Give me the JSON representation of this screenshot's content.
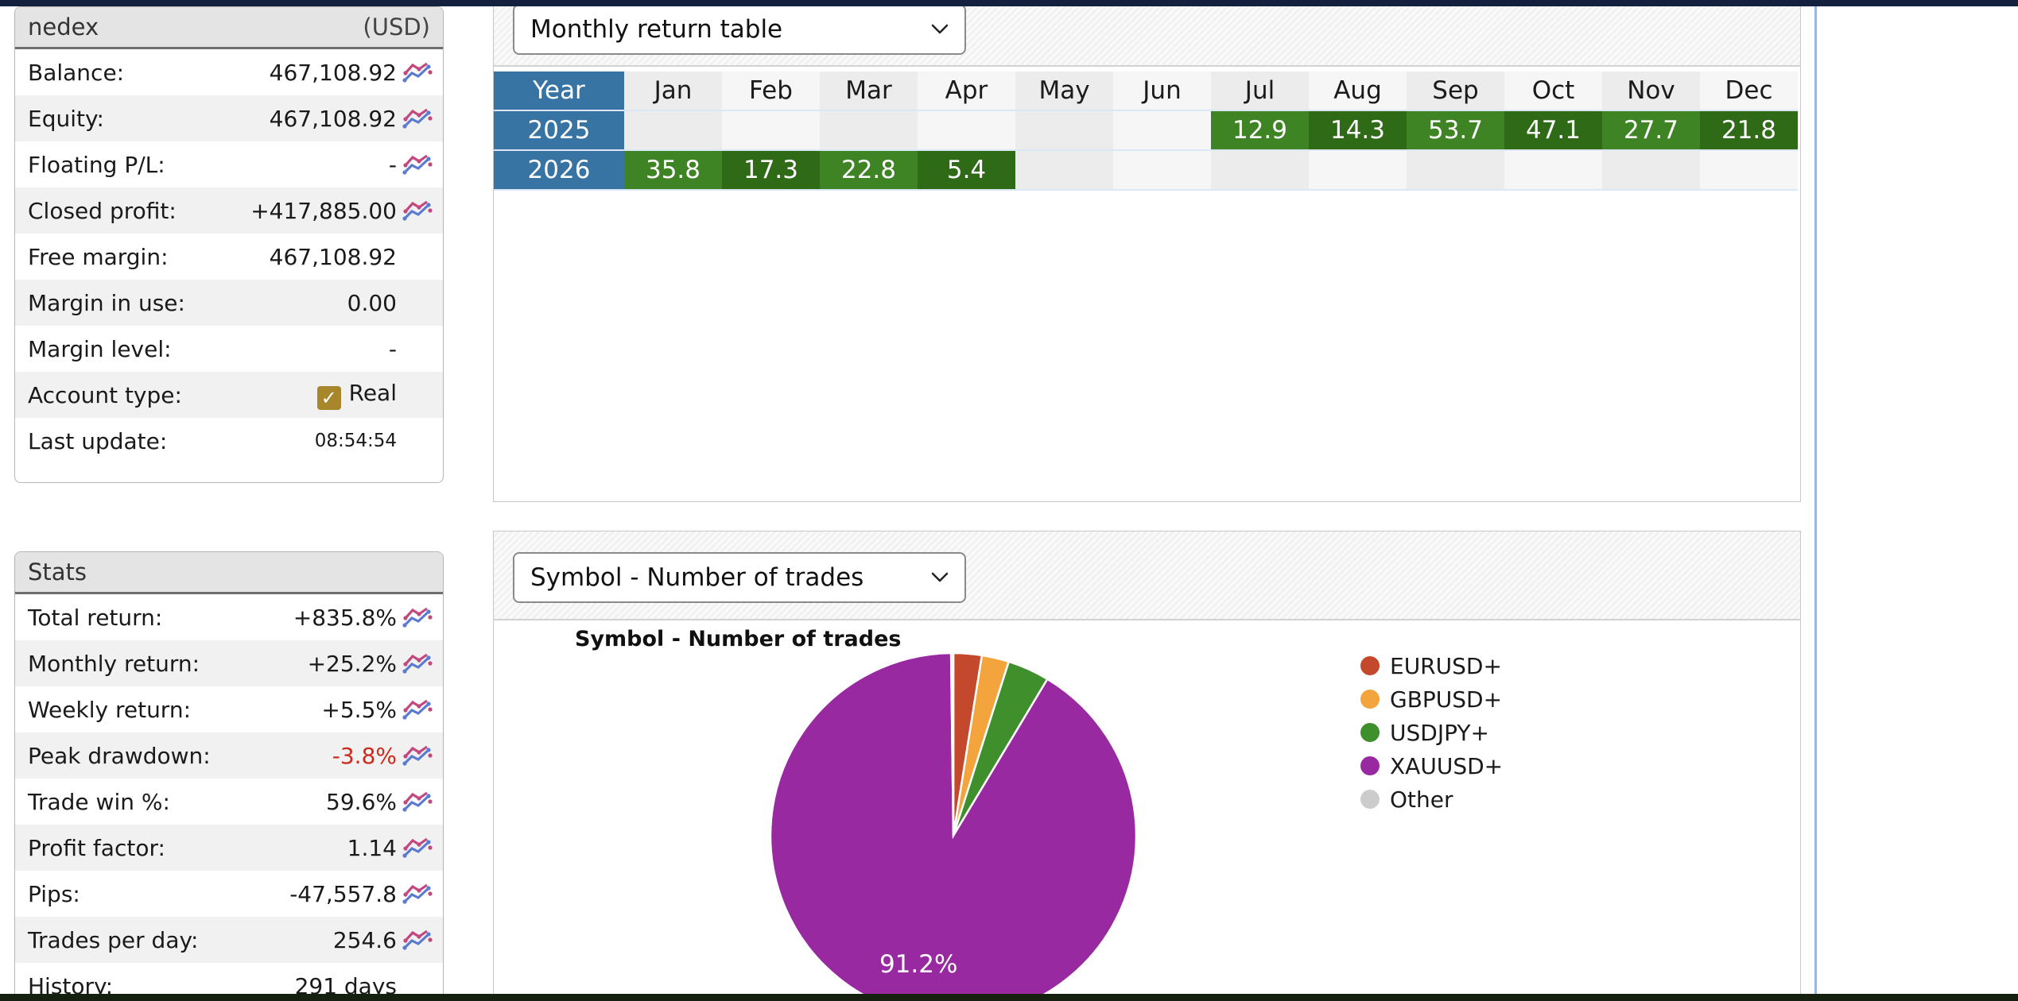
{
  "account_panel": {
    "title": "nedex",
    "currency": "(USD)",
    "rows": [
      {
        "label": "Balance:",
        "value": "467,108.92",
        "has_icon": true
      },
      {
        "label": "Equity:",
        "value": "467,108.92",
        "has_icon": true
      },
      {
        "label": "Floating P/L:",
        "value": "-",
        "has_icon": true
      },
      {
        "label": "Closed profit:",
        "value": "+417,885.00",
        "has_icon": true
      },
      {
        "label": "Free margin:",
        "value": "467,108.92",
        "has_icon": false
      },
      {
        "label": "Margin in use:",
        "value": "0.00",
        "has_icon": false
      },
      {
        "label": "Margin level:",
        "value": "-",
        "has_icon": false
      },
      {
        "label": "Account type:",
        "value": "Real",
        "has_icon": false,
        "checkbox": true
      },
      {
        "label": "Last update:",
        "value": "08:54:54",
        "has_icon": false,
        "small": true
      }
    ]
  },
  "stats_panel": {
    "title": "Stats",
    "rows": [
      {
        "label": "Total return:",
        "value": "+835.8%",
        "has_icon": true
      },
      {
        "label": "Monthly return:",
        "value": "+25.2%",
        "has_icon": true
      },
      {
        "label": "Weekly return:",
        "value": "+5.5%",
        "has_icon": true
      },
      {
        "label": "Peak drawdown:",
        "value": "-3.8%",
        "has_icon": true,
        "negative": true
      },
      {
        "label": "Trade win %:",
        "value": "59.6%",
        "has_icon": true
      },
      {
        "label": "Profit factor:",
        "value": "1.14",
        "has_icon": true
      },
      {
        "label": "Pips:",
        "value": "-47,557.8",
        "has_icon": true
      },
      {
        "label": "Trades per day:",
        "value": "254.6",
        "has_icon": true
      },
      {
        "label": "History:",
        "value": "291 days",
        "has_icon": false
      }
    ]
  },
  "monthly_panel": {
    "dropdown_value": "Monthly return table"
  },
  "symbol_panel": {
    "dropdown_value": "Symbol - Number of trades",
    "chart_title": "Symbol - Number of trades"
  },
  "chart_data": [
    {
      "type": "table",
      "title": "Monthly return table",
      "columns": [
        "Year",
        "Jan",
        "Feb",
        "Mar",
        "Apr",
        "May",
        "Jun",
        "Jul",
        "Aug",
        "Sep",
        "Oct",
        "Nov",
        "Dec"
      ],
      "rows": [
        {
          "year": "2025",
          "values": [
            null,
            null,
            null,
            null,
            null,
            null,
            12.9,
            14.3,
            53.7,
            47.1,
            27.7,
            21.8
          ]
        },
        {
          "year": "2026",
          "values": [
            35.8,
            17.3,
            22.8,
            5.4,
            null,
            null,
            null,
            null,
            null,
            null,
            null,
            null
          ]
        }
      ]
    },
    {
      "type": "pie",
      "title": "Symbol - Number of trades",
      "labels": [
        "EURUSD+",
        "GBPUSD+",
        "USDJPY+",
        "XAUUSD+",
        "Other"
      ],
      "values": [
        2.5,
        2.4,
        3.7,
        91.2,
        0.2
      ],
      "colors": [
        "#c4482b",
        "#f3a43d",
        "#3f8f2d",
        "#9929a1",
        "#cccccc"
      ],
      "data_label": "91.2%",
      "legend_position": "right"
    }
  ],
  "colors": {
    "year_cell_blue": "#3874a3",
    "green_light": "#3e8324",
    "green_dark": "#2f6a17",
    "negative_red": "#cc2a1a",
    "top_bar_navy": "#13203e",
    "right_line_blue": "#9ab7e4",
    "checkbox_gold": "#a8862c"
  }
}
